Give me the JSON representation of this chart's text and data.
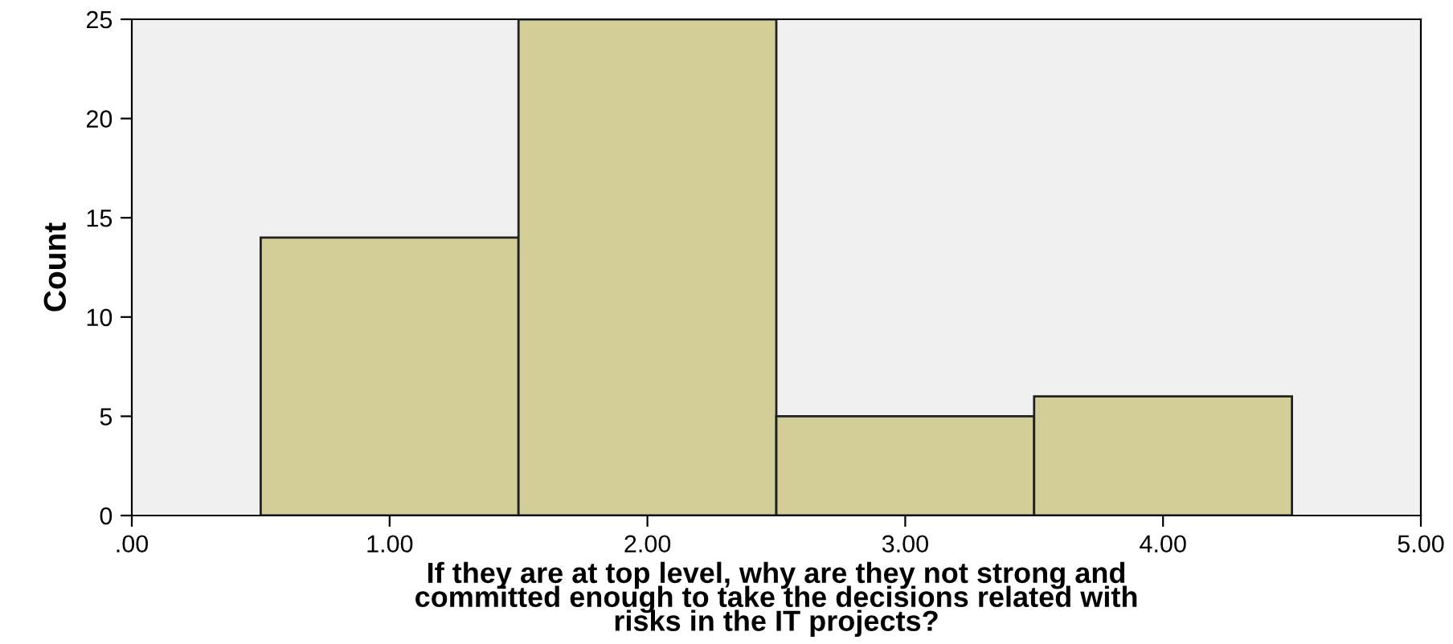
{
  "chart_data": {
    "type": "histogram",
    "bins": [
      0.5,
      1.5,
      2.5,
      3.5,
      4.5
    ],
    "values": [
      14,
      25,
      5,
      6
    ],
    "color": "#d3ce98",
    "xlabel": "If they are at top level, why are they not strong and\ncommitted enough to take the decisions related with\nrisks in the IT projects?",
    "ylabel": "Count",
    "xlim": [
      0,
      5
    ],
    "ylim": [
      0,
      25
    ],
    "xticks": [
      {
        "value": 0,
        "label": ".00"
      },
      {
        "value": 1,
        "label": "1.00"
      },
      {
        "value": 2,
        "label": "2.00"
      },
      {
        "value": 3,
        "label": "3.00"
      },
      {
        "value": 4,
        "label": "4.00"
      },
      {
        "value": 5,
        "label": "5.00"
      }
    ],
    "yticks": [
      0,
      5,
      10,
      15,
      20,
      25
    ],
    "grid": false,
    "legend": false
  }
}
